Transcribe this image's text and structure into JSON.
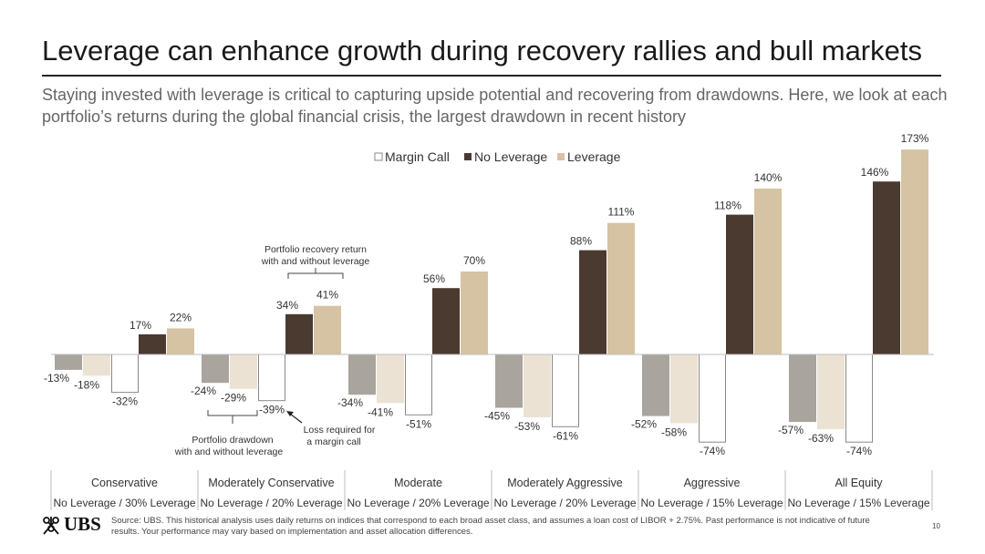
{
  "header": {
    "title": "Leverage can enhance growth during recovery rallies and bull markets",
    "subtitle": "Staying invested with leverage is critical to capturing upside potential and recovering from drawdowns. Here, we look at each portfolio’s returns during the global financial crisis, the largest drawdown in recent history"
  },
  "chart_data": {
    "type": "bar",
    "legend_position": "top-center",
    "series_styles": [
      {
        "name": "Margin Call",
        "fill": "#ffffff",
        "stroke": "#888888"
      },
      {
        "name": "No Leverage",
        "fill": "#4a3a30",
        "stroke": "none"
      },
      {
        "name": "Leverage",
        "fill": "#d5c3a3",
        "stroke": "none"
      }
    ],
    "drawdown_colors": {
      "no_leverage": "#aaa49e",
      "leverage": "#ebe2d3"
    },
    "groups": [
      {
        "name": "Conservative",
        "leverage": "No Leverage / 30% Leverage",
        "dd_no_lev": -13,
        "dd_lev": -18,
        "margin_call": -32,
        "rec_no_lev": 17,
        "rec_lev": 22,
        "labels": {
          "dd_no_lev": "-13%",
          "dd_lev": "-18%",
          "margin_call": "-32%",
          "rec_no_lev": "17%",
          "rec_lev": "22%"
        }
      },
      {
        "name": "Moderately Conservative",
        "leverage": "No Leverage / 20% Leverage",
        "dd_no_lev": -24,
        "dd_lev": -29,
        "margin_call": -39,
        "rec_no_lev": 34,
        "rec_lev": 41,
        "labels": {
          "dd_no_lev": "-24%",
          "dd_lev": "-29%",
          "margin_call": "-39%",
          "rec_no_lev": "34%",
          "rec_lev": "41%"
        }
      },
      {
        "name": "Moderate",
        "leverage": "No Leverage / 20% Leverage",
        "dd_no_lev": -34,
        "dd_lev": -41,
        "margin_call": -51,
        "rec_no_lev": 56,
        "rec_lev": 70,
        "labels": {
          "dd_no_lev": "-34%",
          "dd_lev": "-41%",
          "margin_call": "-51%",
          "rec_no_lev": "56%",
          "rec_lev": "70%"
        }
      },
      {
        "name": "Moderately Aggressive",
        "leverage": "No Leverage / 20% Leverage",
        "dd_no_lev": -45,
        "dd_lev": -53,
        "margin_call": -61,
        "rec_no_lev": 88,
        "rec_lev": 111,
        "labels": {
          "dd_no_lev": "-45%",
          "dd_lev": "-53%",
          "margin_call": "-61%",
          "rec_no_lev": "88%",
          "rec_lev": "111%"
        }
      },
      {
        "name": "Aggressive",
        "leverage": "No Leverage / 15% Leverage",
        "dd_no_lev": -52,
        "dd_lev": -58,
        "margin_call": -74,
        "rec_no_lev": 118,
        "rec_lev": 140,
        "labels": {
          "dd_no_lev": "-52%",
          "dd_lev": "-58%",
          "margin_call": "-74%",
          "rec_no_lev": "118%",
          "rec_lev": "140%"
        }
      },
      {
        "name": "All Equity",
        "leverage": "No Leverage / 15% Leverage",
        "dd_no_lev": -57,
        "dd_lev": -63,
        "margin_call": -74,
        "rec_no_lev": 146,
        "rec_lev": 173,
        "labels": {
          "dd_no_lev": "-57%",
          "dd_lev": "-63%",
          "margin_call": "-74%",
          "rec_no_lev": "146%",
          "rec_lev": "173%"
        }
      }
    ],
    "annotations": {
      "recovery": [
        "Portfolio recovery return",
        "with and without leverage"
      ],
      "drawdown": [
        "Portfolio drawdown",
        "with and without leverage"
      ],
      "margin": [
        "Loss required for",
        "a margin call"
      ]
    }
  },
  "footer": {
    "logo_text": "UBS",
    "source": "Source: UBS. This historical analysis uses daily returns on indices that correspond to each broad asset class, and assumes a loan cost of LIBOR + 2.75%. Past performance is not indicative of future results. Your performance may vary based on implementation and asset allocation differences.",
    "page_number": "10"
  }
}
